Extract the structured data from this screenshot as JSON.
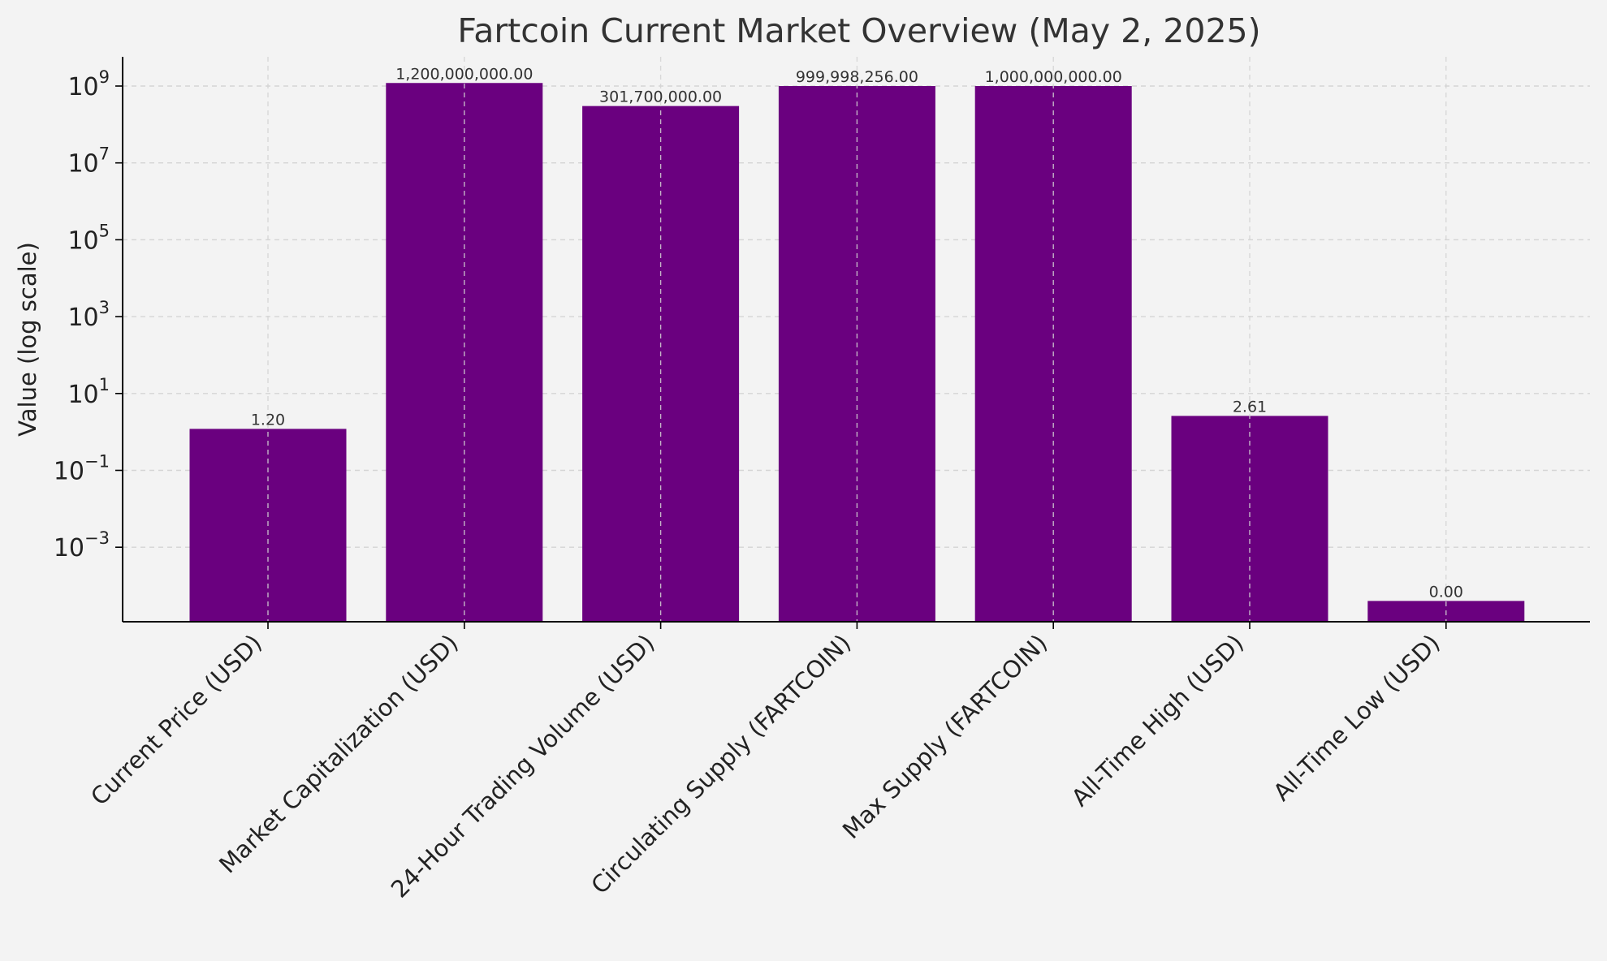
{
  "chart_data": {
    "type": "bar",
    "title": "Fartcoin Current Market Overview (May 2, 2025)",
    "xlabel": "",
    "ylabel": "Value (log scale)",
    "yscale": "log",
    "ylim": [
      2e-05,
      5000000000
    ],
    "yticks": [
      {
        "base": "10",
        "exp": "9",
        "value": 1000000000
      },
      {
        "base": "10",
        "exp": "7",
        "value": 10000000
      },
      {
        "base": "10",
        "exp": "5",
        "value": 100000
      },
      {
        "base": "10",
        "exp": "3",
        "value": 1000
      },
      {
        "base": "10",
        "exp": "1",
        "value": 10
      },
      {
        "base": "10",
        "exp": "−1",
        "value": 0.1
      },
      {
        "base": "10",
        "exp": "−3",
        "value": 0.001
      }
    ],
    "categories": [
      "Current Price (USD)",
      "Market Capitalization (USD)",
      "24-Hour Trading Volume (USD)",
      "Circulating Supply (FARTCOIN)",
      "Max Supply (FARTCOIN)",
      "All-Time High (USD)",
      "All-Time Low (USD)"
    ],
    "values": [
      1.2,
      1200000000,
      301700000,
      999998256,
      1000000000,
      2.61,
      4e-05
    ],
    "data_labels": [
      "1.20",
      "1,200,000,000.00",
      "301,700,000.00",
      "999,998,256.00",
      "1,000,000,000.00",
      "2.61",
      "0.00"
    ],
    "grid": true,
    "colors": {
      "bar": "#6a007f",
      "background": "#f3f3f3",
      "grid": "#d4d4d4",
      "axis": "#000000",
      "title": "#333333",
      "text": "#222222"
    }
  }
}
